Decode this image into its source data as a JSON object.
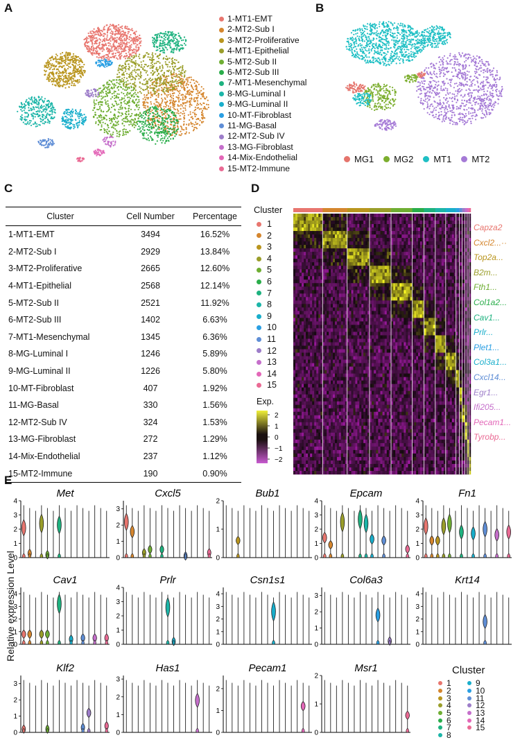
{
  "panels": {
    "a": "A",
    "b": "B",
    "c": "C",
    "d": "D",
    "e": "E"
  },
  "panel_a": {
    "legend": [
      {
        "label": "1-MT1-EMT",
        "color": "#e8766f"
      },
      {
        "label": "2-MT2-Sub I",
        "color": "#d5862e"
      },
      {
        "label": "3-MT2-Proliferative",
        "color": "#b9951e"
      },
      {
        "label": "4-MT1-Epithelial",
        "color": "#9a9e2a"
      },
      {
        "label": "5-MT2-Sub II",
        "color": "#6fae33"
      },
      {
        "label": "6-MT2-Sub III",
        "color": "#2aad4a"
      },
      {
        "label": "7-MT1-Mesenchymal",
        "color": "#1eb27f"
      },
      {
        "label": "8-MG-Luminal I",
        "color": "#1cb5a8"
      },
      {
        "label": "9-MG-Luminal II",
        "color": "#19aecb"
      },
      {
        "label": "10-MT-Fibroblast",
        "color": "#2a9fe3"
      },
      {
        "label": "11-MG-Basal",
        "color": "#5f8ed6"
      },
      {
        "label": "12-MT2-Sub IV",
        "color": "#9d7dc9"
      },
      {
        "label": "13-MG-Fibroblast",
        "color": "#c56fcb"
      },
      {
        "label": "14-Mix-Endothelial",
        "color": "#e367b8"
      },
      {
        "label": "15-MT2-Immune",
        "color": "#ea6a94"
      }
    ]
  },
  "panel_b": {
    "legend": [
      {
        "label": "MG1",
        "color": "#e5746c"
      },
      {
        "label": "MG2",
        "color": "#7cae2e"
      },
      {
        "label": "MT1",
        "color": "#1fbfc4"
      },
      {
        "label": "MT2",
        "color": "#a57ad6"
      }
    ]
  },
  "panel_c": {
    "headers": [
      "Cluster",
      "Cell Number",
      "Percentage"
    ],
    "rows": [
      [
        "1-MT1-EMT",
        "3494",
        "16.52%"
      ],
      [
        "2-MT2-Sub I",
        "2929",
        "13.84%"
      ],
      [
        "3-MT2-Proliferative",
        "2665",
        "12.60%"
      ],
      [
        "4-MT1-Epithelial",
        "2568",
        "12.14%"
      ],
      [
        "5-MT2-Sub II",
        "2521",
        "11.92%"
      ],
      [
        "6-MT2-Sub III",
        "1402",
        "6.63%"
      ],
      [
        "7-MT1-Mesenchymal",
        "1345",
        "6.36%"
      ],
      [
        "8-MG-Luminal I",
        "1246",
        "5.89%"
      ],
      [
        "9-MG-Luminal II",
        "1226",
        "5.80%"
      ],
      [
        "10-MT-Fibroblast",
        "407",
        "1.92%"
      ],
      [
        "11-MG-Basal",
        "330",
        "1.56%"
      ],
      [
        "12-MT2-Sub IV",
        "324",
        "1.53%"
      ],
      [
        "13-MG-Fibroblast",
        "272",
        "1.29%"
      ],
      [
        "14-Mix-Endothelial",
        "237",
        "1.12%"
      ],
      [
        "15-MT2-Immune",
        "190",
        "0.90%"
      ]
    ]
  },
  "panel_d": {
    "cluster_title": "Cluster",
    "clusters": [
      "1",
      "2",
      "3",
      "4",
      "5",
      "6",
      "7",
      "8",
      "9",
      "10",
      "11",
      "12",
      "13",
      "14",
      "15"
    ],
    "exp_title": "Exp.",
    "colorbar_ticks": [
      "2",
      "1",
      "0",
      "−1",
      "−2"
    ],
    "genes": [
      {
        "label": "Capza2",
        "color": "#e8766f"
      },
      {
        "label": "Cxcl2...··",
        "color": "#d5862e"
      },
      {
        "label": "Top2a...",
        "color": "#b9951e"
      },
      {
        "label": "B2m...",
        "color": "#9a9e2a"
      },
      {
        "label": "Fth1...",
        "color": "#6fae33"
      },
      {
        "label": "Col1a2...",
        "color": "#2aad4a"
      },
      {
        "label": "Cav1...",
        "color": "#1eb27f"
      },
      {
        "label": "Prlr...",
        "color": "#19aecb"
      },
      {
        "label": "Plet1...",
        "color": "#2a9fe3"
      },
      {
        "label": "Col3a1...",
        "color": "#19aecb"
      },
      {
        "label": "Cxcl14...",
        "color": "#5f8ed6"
      },
      {
        "label": "Egr1...",
        "color": "#9d7dc9"
      },
      {
        "label": "Ifi205...",
        "color": "#c56fcb"
      },
      {
        "label": "Pecam1...",
        "color": "#e367b8"
      },
      {
        "label": "Tyrobp...",
        "color": "#ea6a94"
      }
    ]
  },
  "panel_e": {
    "ylabel": "Relative expression Level",
    "legend_title": "Cluster",
    "cluster_labels": [
      "1",
      "2",
      "3",
      "4",
      "5",
      "6",
      "7",
      "8",
      "9",
      "10",
      "11",
      "12",
      "13",
      "14",
      "15"
    ],
    "genes": [
      {
        "name": "Met",
        "ymax": 4,
        "yticks": [
          "0",
          "1",
          "2",
          "3",
          "4"
        ],
        "expr": [
          2.1,
          0.3,
          0,
          2.4,
          0.2,
          0,
          2.3,
          0,
          0,
          0,
          0,
          0,
          0,
          0,
          0
        ]
      },
      {
        "name": "Cxcl5",
        "ymax": 3.5,
        "yticks": [
          "0",
          "1",
          "2",
          "3"
        ],
        "expr": [
          2.2,
          1.6,
          0,
          0.3,
          0.5,
          0,
          0.5,
          0,
          0,
          0,
          0.1,
          0,
          0,
          0,
          0.3
        ]
      },
      {
        "name": "Bub1",
        "ymax": 2,
        "yticks": [
          "0",
          "1",
          "2"
        ],
        "expr": [
          0,
          0,
          0.6,
          0,
          0,
          0,
          0,
          0,
          0,
          0,
          0,
          0,
          0,
          0,
          0
        ]
      },
      {
        "name": "Epcam",
        "ymax": 4,
        "yticks": [
          "0",
          "1",
          "2",
          "3",
          "4"
        ],
        "expr": [
          1.4,
          0.9,
          0,
          2.5,
          0,
          0,
          2.7,
          2.4,
          1.3,
          0,
          1.2,
          0,
          0,
          0,
          0.6
        ]
      },
      {
        "name": "Fn1",
        "ymax": 4,
        "yticks": [
          "0",
          "1",
          "2",
          "3",
          "4"
        ],
        "expr": [
          2.2,
          1.2,
          1.2,
          2.2,
          2.4,
          0,
          1.8,
          0,
          1.7,
          0,
          2.0,
          0,
          1.6,
          0,
          1.8
        ]
      },
      {
        "name": "Cav1",
        "ymax": 4.5,
        "yticks": [
          "0",
          "1",
          "2",
          "3",
          "4"
        ],
        "expr": [
          0.8,
          0.8,
          0,
          0.8,
          0.8,
          0,
          3.2,
          0,
          0.4,
          0,
          0.5,
          0,
          0.5,
          0,
          0.5
        ]
      },
      {
        "name": "Prlr",
        "ymax": 4,
        "yticks": [
          "0",
          "1",
          "2",
          "3",
          "4"
        ],
        "expr": [
          0,
          0,
          0,
          0,
          0,
          0,
          0,
          2.6,
          0.2,
          0,
          0,
          0,
          0,
          0,
          0
        ]
      },
      {
        "name": "Csn1s1",
        "ymax": 4.5,
        "yticks": [
          "0",
          "1",
          "2",
          "3",
          "4"
        ],
        "expr": [
          0,
          0,
          0,
          0,
          0,
          0,
          0,
          0,
          2.6,
          0,
          0,
          0,
          0,
          0,
          0
        ]
      },
      {
        "name": "Col6a3",
        "ymax": 3.5,
        "yticks": [
          "0",
          "1",
          "2",
          "3"
        ],
        "expr": [
          0,
          0,
          0,
          0,
          0,
          0,
          0,
          0,
          0,
          1.8,
          0,
          0.2,
          0,
          0,
          0
        ]
      },
      {
        "name": "Krt14",
        "ymax": 4.5,
        "yticks": [
          "0",
          "1",
          "2",
          "3",
          "4"
        ],
        "expr": [
          0,
          0,
          0,
          0,
          0,
          0,
          0,
          0,
          0,
          0,
          1.8,
          0,
          0,
          0,
          0
        ]
      },
      {
        "name": "Klf2",
        "ymax": 3.5,
        "yticks": [
          "0",
          "1",
          "2",
          "3"
        ],
        "expr": [
          0.2,
          0,
          0,
          0,
          0.2,
          0,
          0,
          0,
          0,
          0,
          0.3,
          1.2,
          0,
          0,
          0.4
        ]
      },
      {
        "name": "Has1",
        "ymax": 3.2,
        "yticks": [
          "0",
          "1",
          "2",
          "3"
        ],
        "expr": [
          0,
          0,
          0,
          0,
          0,
          0,
          0,
          0,
          0,
          0,
          0,
          0,
          1.8,
          0,
          0
        ]
      },
      {
        "name": "Pecam1",
        "ymax": 2.6,
        "yticks": [
          "0",
          "1",
          "2"
        ],
        "expr": [
          0,
          0,
          0,
          0,
          0,
          0,
          0,
          0,
          0,
          0,
          0,
          0,
          0,
          1.2,
          0
        ]
      },
      {
        "name": "Msr1",
        "ymax": 2,
        "yticks": [
          "0",
          "1",
          "2"
        ],
        "expr": [
          0,
          0,
          0,
          0,
          0,
          0,
          0,
          0,
          0,
          0,
          0,
          0,
          0,
          0,
          0.6
        ]
      }
    ]
  }
}
